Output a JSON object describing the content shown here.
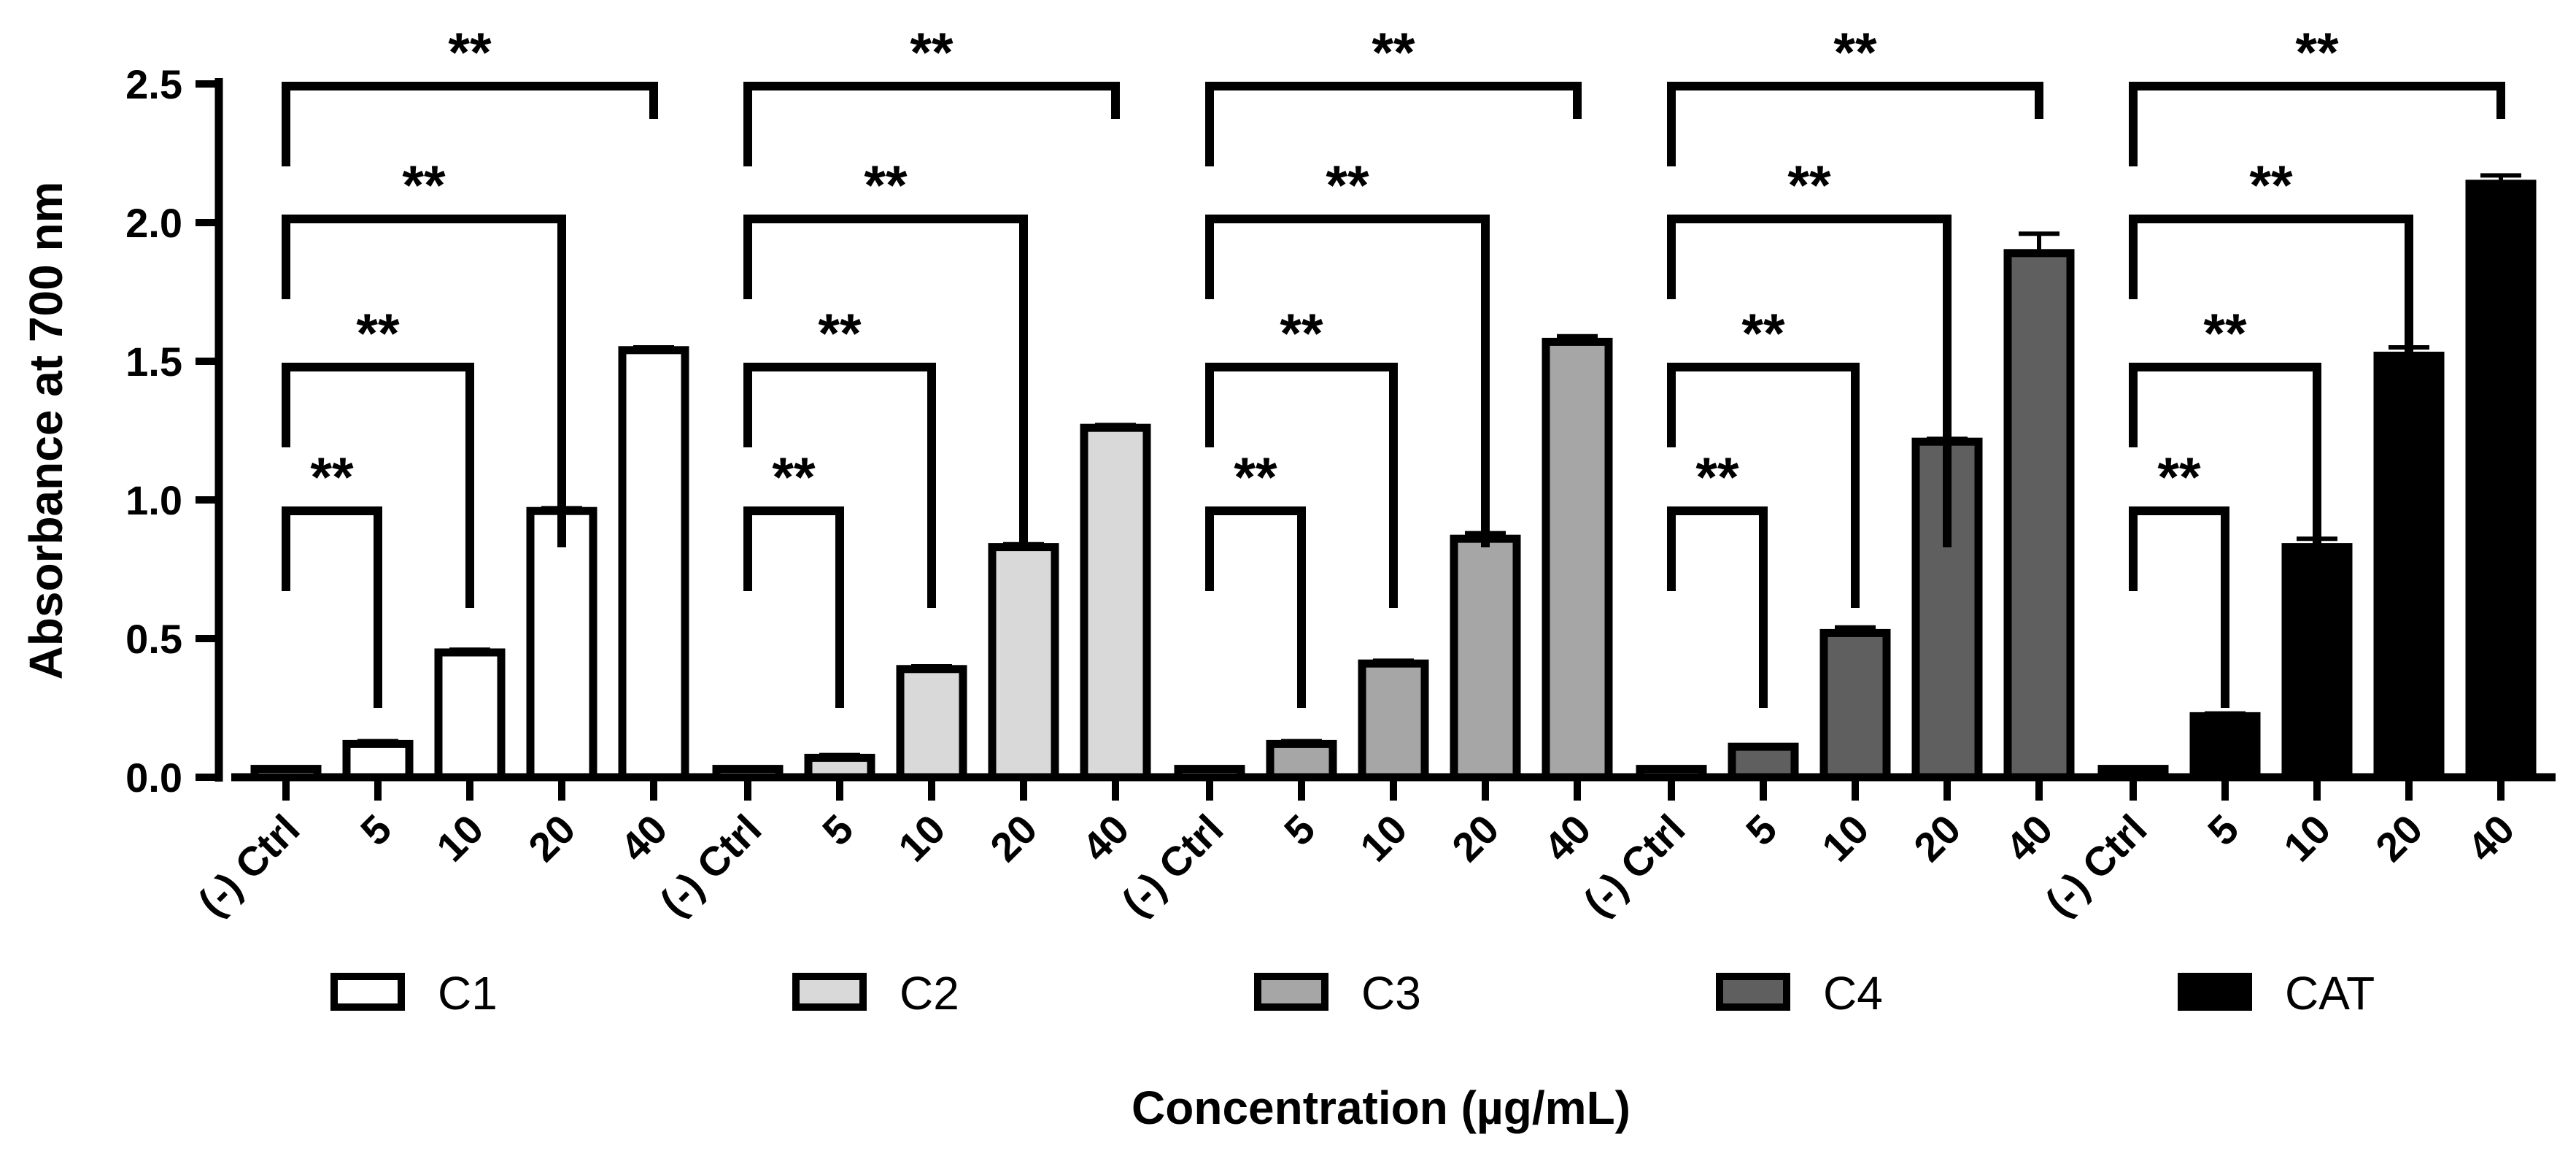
{
  "chart_data": {
    "type": "bar",
    "title": "",
    "xlabel": "Concentration (µg/mL)",
    "ylabel": "Absorbance at 700 nm",
    "ylim": [
      0,
      2.5
    ],
    "yticks": [
      "0.0",
      "0.5",
      "1.0",
      "1.5",
      "2.0",
      "2.5"
    ],
    "ytick_values": [
      0,
      0.5,
      1.0,
      1.5,
      2.0,
      2.5
    ],
    "categories": [
      "(-) Ctrl",
      "5",
      "10",
      "20",
      "40"
    ],
    "significance_label": "**",
    "series": [
      {
        "name": "C1",
        "fill": "#ffffff",
        "values": [
          0.03,
          0.12,
          0.45,
          0.96,
          1.54
        ],
        "errors": [
          0.005,
          0.01,
          0.01,
          0.01,
          0.01
        ]
      },
      {
        "name": "C2",
        "fill": "#d9d9d9",
        "values": [
          0.03,
          0.07,
          0.39,
          0.83,
          1.26
        ],
        "errors": [
          0.005,
          0.01,
          0.01,
          0.01,
          0.01
        ]
      },
      {
        "name": "C3",
        "fill": "#a6a6a6",
        "values": [
          0.03,
          0.12,
          0.41,
          0.86,
          1.57
        ],
        "errors": [
          0.005,
          0.01,
          0.01,
          0.02,
          0.02
        ]
      },
      {
        "name": "C4",
        "fill": "#5f5f5f",
        "values": [
          0.03,
          0.11,
          0.52,
          1.21,
          1.89
        ],
        "errors": [
          0.005,
          0.005,
          0.02,
          0.01,
          0.07
        ]
      },
      {
        "name": "CAT",
        "fill": "#000000",
        "values": [
          0.03,
          0.22,
          0.83,
          1.52,
          2.14
        ],
        "errors": [
          0.005,
          0.01,
          0.03,
          0.03,
          0.03
        ]
      }
    ],
    "legend_position": "bottom",
    "grid": false
  }
}
